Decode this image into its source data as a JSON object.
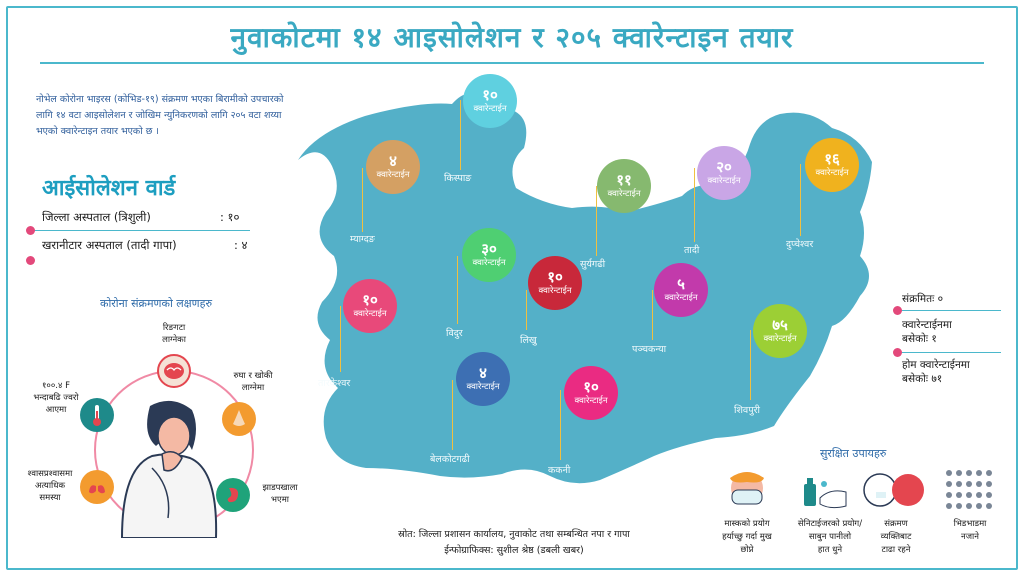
{
  "title": "नुवाकोटमा १४ आइसोलेशन र २०५ क्वारेन्टाइन तयार",
  "intro": "नोभेल कोरोना भाइरस (कोभिड-१९) संक्रमण भएका बिरामीको उपचारको लागि १४ वटा आइसोलेशन र जोखिम न्युनिकरणको लागि २०५ वटा शय्या भएको क्वारेन्टाइन तयार भएको छ ।",
  "isolation": {
    "heading": "आईसोलेशन वार्ड",
    "rows": [
      {
        "name": "जिल्ला अस्पताल (त्रिशुली)",
        "value": ": १०"
      },
      {
        "name": "खरानीटार अस्पताल (तादी गापा)",
        "value": ": ४"
      }
    ]
  },
  "symptoms": {
    "heading": "कोरोना संक्रमणको लक्षणहरु",
    "items": [
      {
        "label": "रिङगटा\nलाग्नेका",
        "icon": "brain-icon",
        "color": "#e4464f"
      },
      {
        "label": "रुघा र खोकी\nलाग्नेमा",
        "icon": "nose-icon",
        "color": "#f39b2f"
      },
      {
        "label": "झाडपखाला\nभएमा",
        "icon": "stomach-icon",
        "color": "#1fa37a"
      },
      {
        "label": "श्वासप्रश्वासमा\nअत्याधिक\nसमस्या",
        "icon": "lungs-icon",
        "color": "#f39b2f"
      },
      {
        "label": "१००.४ F\nभन्दाबढि ज्वरो\nआएमा",
        "icon": "thermometer-icon",
        "color": "#1e8a8a"
      }
    ]
  },
  "quarantine_label": "क्वारेन्टाईन",
  "badges": [
    {
      "num": "१०",
      "place": "किस्पाङ",
      "color": "#5fd0e0"
    },
    {
      "num": "४",
      "place": "म्याग्दङ",
      "color": "#d4a063"
    },
    {
      "num": "११",
      "place": "सुर्यगढी",
      "color": "#86b96f"
    },
    {
      "num": "२०",
      "place": "तादी",
      "color": "#c9a6e6"
    },
    {
      "num": "१६",
      "place": "दुप्चेश्वर",
      "color": "#f0b21e"
    },
    {
      "num": "३०",
      "place": "विदुर",
      "color": "#4fcf72"
    },
    {
      "num": "१०",
      "place": "लिखु",
      "color": "#c8283a"
    },
    {
      "num": "५",
      "place": "पञ्चकन्या",
      "color": "#c23aab"
    },
    {
      "num": "१०",
      "place": "तारकेश्वर",
      "color": "#e8497a"
    },
    {
      "num": "७५",
      "place": "शिवपुरी",
      "color": "#9ccf35"
    },
    {
      "num": "४",
      "place": "बेलकोटगढी",
      "color": "#3d6fb3"
    },
    {
      "num": "१०",
      "place": "ककनी",
      "color": "#ea2b82"
    }
  ],
  "stats": [
    "संक्रमितः ०",
    "क्वारेन्टाईनमा\nबसेकोः १",
    "होम क्वारेन्टाईनमा\nबसेकोः ७१"
  ],
  "safety": {
    "heading": "सुरक्षित उपायहरु",
    "items": [
      {
        "label": "मास्कको प्रयोग\nहर्याच्छु गर्दा मुख\nछोप्ने",
        "icon": "mask-icon"
      },
      {
        "label": "सेनिटाईजरको प्रयोग/\nसाबुन पानीलो\nहात धुने",
        "icon": "handwash-icon"
      },
      {
        "label": "संक्रमण\nव्यक्तिबाट\nटाढा रहने",
        "icon": "distance-icon"
      },
      {
        "label": "भिडभाडमा\nनजाने",
        "icon": "crowd-icon"
      }
    ]
  },
  "source": "स्रोत: जिल्ला प्रशासन कार्यालय, नुवाकोट तथा सम्बन्धित नपा र गापा",
  "credit": "ईन्फोग्राफिक्स: सुशील श्रेष्ठ (डबली खबर)"
}
